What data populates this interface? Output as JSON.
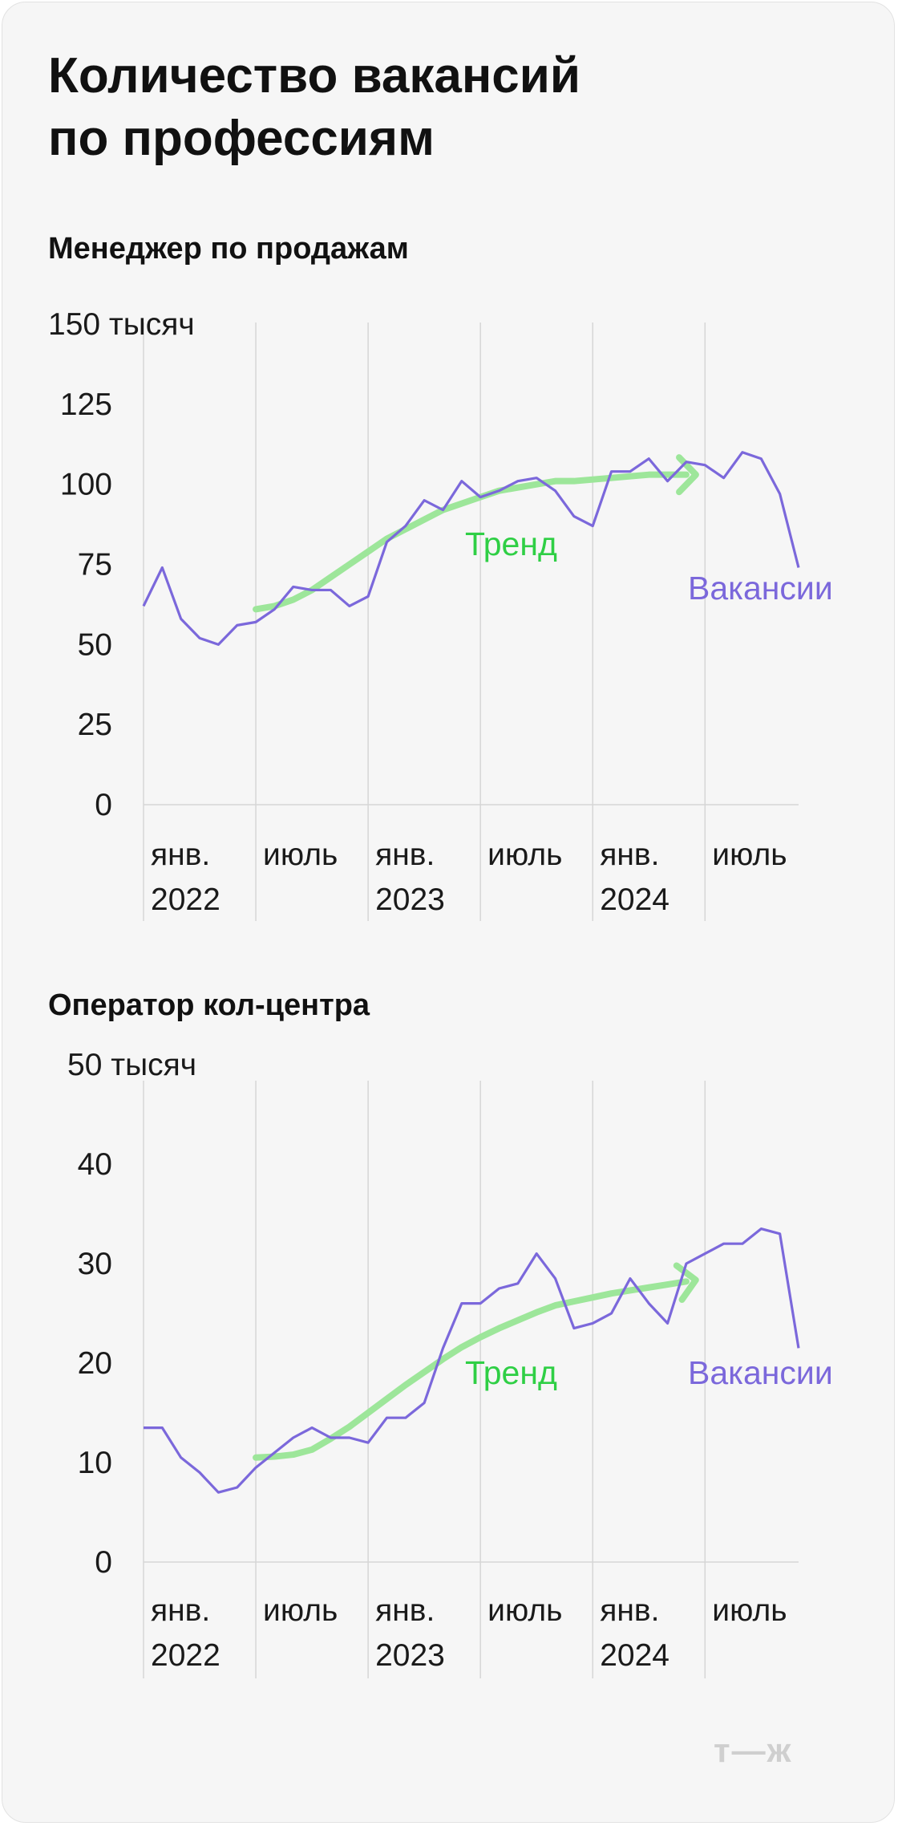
{
  "title": "Количество вакансий\nпо профессиям",
  "logo": "т—ж",
  "colors": {
    "vacancies": "#7b68db",
    "trend": "#9de69a",
    "trend_label": "#2fcf45",
    "grid": "#d6d6d6"
  },
  "chart_data": [
    {
      "type": "line",
      "title": "Менеджер по продажам",
      "unit_label": "150 тысяч",
      "ylim": [
        0,
        150
      ],
      "yticks": [
        "0",
        "25",
        "50",
        "75",
        "100",
        "125",
        "150 тысяч"
      ],
      "ytick_values": [
        0,
        25,
        50,
        75,
        100,
        125,
        150
      ],
      "xlim": [
        0,
        35
      ],
      "xticks": [
        {
          "x": 0,
          "line1": "янв.",
          "line2": "2022"
        },
        {
          "x": 6,
          "line1": "июль",
          "line2": ""
        },
        {
          "x": 12,
          "line1": "янв.",
          "line2": "2023"
        },
        {
          "x": 18,
          "line1": "июль",
          "line2": ""
        },
        {
          "x": 24,
          "line1": "янв.",
          "line2": "2024"
        },
        {
          "x": 30,
          "line1": "июль",
          "line2": ""
        }
      ],
      "grid": true,
      "series": [
        {
          "name": "Вакансии",
          "x": [
            0,
            1,
            2,
            3,
            4,
            5,
            6,
            7,
            8,
            9,
            10,
            11,
            12,
            13,
            14,
            15,
            16,
            17,
            18,
            19,
            20,
            21,
            22,
            23,
            24,
            25,
            26,
            27,
            28,
            29,
            30,
            31,
            32,
            33,
            34,
            35
          ],
          "values": [
            62,
            74,
            58,
            52,
            50,
            56,
            57,
            61,
            68,
            67,
            67,
            62,
            65,
            82,
            87,
            95,
            92,
            101,
            96,
            98,
            101,
            102,
            98,
            90,
            87,
            104,
            104,
            108,
            101,
            107,
            106,
            102,
            110,
            108,
            97,
            74
          ]
        },
        {
          "name": "Тренд",
          "x": [
            6,
            7,
            8,
            9,
            10,
            11,
            12,
            13,
            14,
            15,
            16,
            17,
            18,
            19,
            20,
            21,
            22,
            23,
            24,
            25,
            26,
            27,
            28,
            29
          ],
          "values": [
            61,
            62,
            64,
            67,
            71,
            75,
            79,
            83,
            86,
            89,
            92,
            94,
            96,
            98,
            99,
            100,
            101,
            101,
            101.5,
            102,
            102.5,
            103,
            103,
            103
          ]
        }
      ],
      "labels": [
        {
          "text": "Тренд",
          "series": "Тренд"
        },
        {
          "text": "Вакансии",
          "series": "Вакансии"
        }
      ]
    },
    {
      "type": "line",
      "title": "Оператор кол-центра",
      "unit_label": "50 тысяч",
      "ylim": [
        0,
        50
      ],
      "yticks": [
        "0",
        "10",
        "20",
        "30",
        "40",
        "50 тысяч"
      ],
      "ytick_values": [
        0,
        10,
        20,
        30,
        40,
        50
      ],
      "xlim": [
        0,
        35
      ],
      "xticks": [
        {
          "x": 0,
          "line1": "янв.",
          "line2": "2022"
        },
        {
          "x": 6,
          "line1": "июль",
          "line2": ""
        },
        {
          "x": 12,
          "line1": "янв.",
          "line2": "2023"
        },
        {
          "x": 18,
          "line1": "июль",
          "line2": ""
        },
        {
          "x": 24,
          "line1": "янв.",
          "line2": "2024"
        },
        {
          "x": 30,
          "line1": "июль",
          "line2": ""
        }
      ],
      "grid": true,
      "series": [
        {
          "name": "Вакансии",
          "x": [
            0,
            1,
            2,
            3,
            4,
            5,
            6,
            7,
            8,
            9,
            10,
            11,
            12,
            13,
            14,
            15,
            16,
            17,
            18,
            19,
            20,
            21,
            22,
            23,
            24,
            25,
            26,
            27,
            28,
            29,
            30,
            31,
            32,
            33,
            34,
            35
          ],
          "values": [
            13.5,
            13.5,
            10.5,
            9,
            7,
            7.5,
            9.5,
            11,
            12.5,
            13.5,
            12.5,
            12.5,
            12,
            14.5,
            14.5,
            16,
            21.5,
            26,
            26,
            27.5,
            28,
            31,
            28.5,
            23.5,
            24,
            25,
            28.5,
            26,
            24,
            30,
            31,
            32,
            32,
            33.5,
            33,
            21.5
          ]
        },
        {
          "name": "Тренд",
          "x": [
            6,
            7,
            8,
            9,
            10,
            11,
            12,
            13,
            14,
            15,
            16,
            17,
            18,
            19,
            20,
            21,
            22,
            23,
            24,
            25,
            26,
            27,
            28,
            29
          ],
          "values": [
            10.5,
            10.6,
            10.8,
            11.3,
            12.4,
            13.6,
            15.0,
            16.4,
            17.8,
            19.1,
            20.4,
            21.6,
            22.6,
            23.5,
            24.3,
            25.1,
            25.8,
            26.2,
            26.6,
            27,
            27.3,
            27.6,
            27.9,
            28.2
          ]
        }
      ],
      "labels": [
        {
          "text": "Тренд",
          "series": "Тренд"
        },
        {
          "text": "Вакансии",
          "series": "Вакансии"
        }
      ]
    }
  ]
}
